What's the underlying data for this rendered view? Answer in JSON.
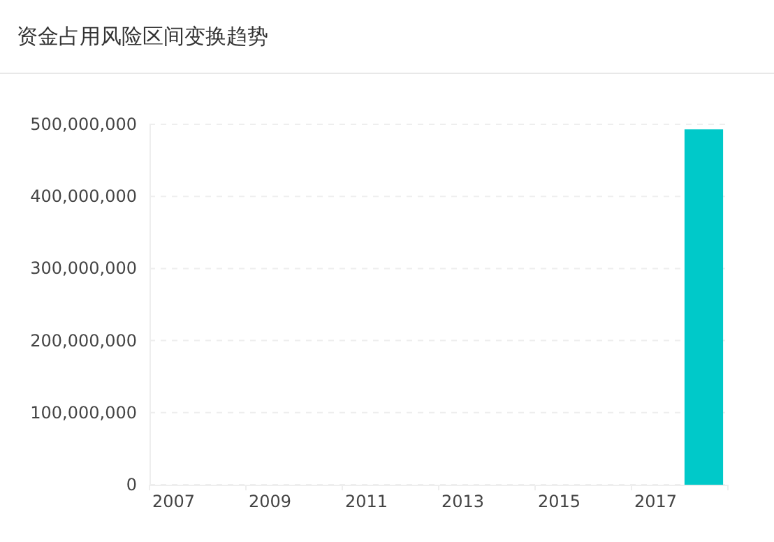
{
  "chart_data": {
    "type": "bar",
    "title": "资金占用风险区间变换趋势",
    "categories": [
      "2007",
      null,
      "2009",
      null,
      "2011",
      null,
      "2013",
      null,
      "2015",
      null,
      "2017",
      null
    ],
    "values": [
      0,
      0,
      0,
      0,
      0,
      0,
      0,
      0,
      0,
      0,
      0,
      493000000
    ],
    "color": "#00c9c9",
    "ylim": [
      0,
      500000000
    ],
    "yticks": [
      {
        "value": 0,
        "label": "0"
      },
      {
        "value": 100000000,
        "label": "100,000,000"
      },
      {
        "value": 200000000,
        "label": "200,000,000"
      },
      {
        "value": 300000000,
        "label": "300,000,000"
      },
      {
        "value": 400000000,
        "label": "400,000,000"
      },
      {
        "value": 500000000,
        "label": "500,000,000"
      }
    ],
    "grid": "y"
  }
}
